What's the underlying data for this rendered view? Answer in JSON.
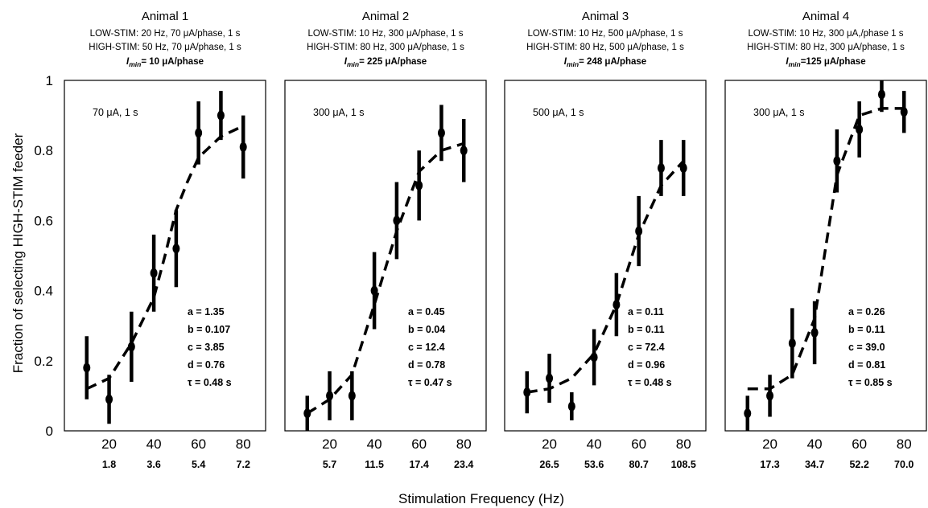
{
  "chart_data": {
    "type": "line",
    "ylabel": "Fraction of selecting HIGH-STIM feeder",
    "xlabel": "Stimulation Frequency (Hz)",
    "ylim": [
      0,
      1
    ],
    "xlim": [
      0,
      90
    ],
    "yticks": [
      0,
      0.2,
      0.4,
      0.6,
      0.8,
      1
    ],
    "ytick_labels": [
      "0",
      "0.2",
      "0.4",
      "0.6",
      "0.8",
      "1"
    ],
    "xticks": [
      20,
      40,
      60,
      80
    ],
    "xtick_labels": [
      "20",
      "40",
      "60",
      "80"
    ],
    "panels": [
      {
        "title": "Animal 1",
        "low_stim": "LOW-STIM:  20 Hz, 70 μA/phase, 1 s",
        "high_stim": "HIGH-STIM: 50 Hz, 70 μA/phase, 1 s",
        "imin_value": "= 10 μA/phase",
        "stim_label": "70 μA, 1 s",
        "secondary_ticks": [
          "1.8",
          "3.6",
          "5.4",
          "7.2"
        ],
        "params": [
          "a =  1.35",
          "b = 0.107",
          "c = 3.85",
          "d = 0.76",
          "τ = 0.48 s"
        ],
        "series": {
          "x": [
            10,
            20,
            30,
            40,
            50,
            60,
            70,
            80
          ],
          "y": [
            0.18,
            0.09,
            0.24,
            0.45,
            0.52,
            0.85,
            0.9,
            0.81
          ],
          "err": [
            0.09,
            0.07,
            0.1,
            0.11,
            0.11,
            0.09,
            0.07,
            0.09
          ]
        },
        "fit": {
          "x": [
            10,
            20,
            30,
            40,
            45,
            50,
            55,
            60,
            70,
            80
          ],
          "y": [
            0.12,
            0.15,
            0.25,
            0.38,
            0.5,
            0.63,
            0.71,
            0.78,
            0.84,
            0.87
          ]
        }
      },
      {
        "title": "Animal 2",
        "low_stim": "LOW-STIM:  10 Hz, 300 μA/phase, 1 s",
        "high_stim": "HIGH-STIM: 80 Hz, 300 μA/phase, 1 s",
        "imin_value": "= 225 μA/phase",
        "stim_label": "300 μA, 1 s",
        "secondary_ticks": [
          "5.7",
          "11.5",
          "17.4",
          "23.4"
        ],
        "params": [
          "a = 0.45",
          "b = 0.04",
          "c = 12.4",
          "d = 0.78",
          "τ = 0.47 s"
        ],
        "series": {
          "x": [
            10,
            20,
            30,
            40,
            50,
            60,
            70,
            80
          ],
          "y": [
            0.05,
            0.1,
            0.1,
            0.4,
            0.6,
            0.7,
            0.85,
            0.8
          ],
          "err": [
            0.05,
            0.07,
            0.07,
            0.11,
            0.11,
            0.1,
            0.08,
            0.09
          ]
        },
        "fit": {
          "x": [
            10,
            20,
            30,
            40,
            50,
            60,
            70,
            80
          ],
          "y": [
            0.05,
            0.09,
            0.16,
            0.36,
            0.57,
            0.74,
            0.8,
            0.82
          ]
        }
      },
      {
        "title": "Animal 3",
        "low_stim": "LOW-STIM:  10 Hz, 500 μA/phase, 1 s",
        "high_stim": "HIGH-STIM: 80 Hz, 500 μA/phase, 1 s",
        "imin_value": "= 248 μA/phase",
        "stim_label": "500 μA, 1 s",
        "secondary_ticks": [
          "26.5",
          "53.6",
          "80.7",
          "108.5"
        ],
        "params": [
          "a = 0.11",
          "b = 0.11",
          "c = 72.4",
          "d = 0.96",
          "τ = 0.48 s"
        ],
        "series": {
          "x": [
            10,
            20,
            30,
            40,
            50,
            60,
            70,
            80
          ],
          "y": [
            0.11,
            0.15,
            0.07,
            0.21,
            0.36,
            0.57,
            0.75,
            0.75
          ],
          "err": [
            0.06,
            0.07,
            0.04,
            0.08,
            0.09,
            0.1,
            0.08,
            0.08
          ]
        },
        "fit": {
          "x": [
            10,
            20,
            30,
            40,
            50,
            60,
            70,
            80
          ],
          "y": [
            0.11,
            0.12,
            0.15,
            0.22,
            0.36,
            0.56,
            0.7,
            0.77
          ]
        }
      },
      {
        "title": "Animal 4",
        "low_stim": "LOW-STIM:  10 Hz, 300 μA,/phase 1 s",
        "high_stim": "HIGH-STIM: 80 Hz, 300 μA/phase, 1 s",
        "imin_value": "=125 μA/phase",
        "stim_label": "300 μA, 1 s",
        "secondary_ticks": [
          "17.3",
          "34.7",
          "52.2",
          "70.0"
        ],
        "params": [
          "a = 0.26",
          "b = 0.11",
          "c = 39.0",
          "d = 0.81",
          "τ = 0.85 s"
        ],
        "series": {
          "x": [
            10,
            20,
            30,
            40,
            50,
            60,
            70,
            80
          ],
          "y": [
            0.05,
            0.1,
            0.25,
            0.28,
            0.77,
            0.86,
            0.96,
            0.91
          ],
          "err": [
            0.05,
            0.06,
            0.1,
            0.09,
            0.09,
            0.08,
            0.05,
            0.06
          ]
        },
        "fit": {
          "x": [
            10,
            20,
            30,
            40,
            50,
            60,
            70,
            80
          ],
          "y": [
            0.12,
            0.12,
            0.16,
            0.32,
            0.73,
            0.9,
            0.92,
            0.92
          ]
        }
      }
    ]
  }
}
